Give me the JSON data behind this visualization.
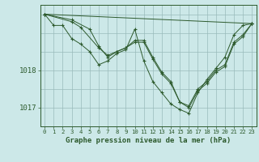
{
  "title": "Graphe pression niveau de la mer (hPa)",
  "bg_color": "#cce8e8",
  "grid_color": "#99bbbb",
  "line_color": "#2d5a2d",
  "xlim": [
    -0.5,
    23.5
  ],
  "ylim": [
    1016.5,
    1019.75
  ],
  "yticks": [
    1017,
    1018
  ],
  "xticks": [
    0,
    1,
    2,
    3,
    4,
    5,
    6,
    7,
    8,
    9,
    10,
    11,
    12,
    13,
    14,
    15,
    16,
    17,
    18,
    19,
    20,
    21,
    22,
    23
  ],
  "lines": [
    {
      "x": [
        0,
        1,
        2,
        3,
        4,
        5,
        6,
        7,
        8,
        9,
        10,
        11,
        12,
        13,
        14,
        15,
        16,
        17,
        18,
        19,
        20,
        21,
        22,
        23
      ],
      "y": [
        1019.5,
        1019.2,
        1019.2,
        1018.85,
        1018.7,
        1018.5,
        1018.15,
        1018.25,
        1018.45,
        1018.55,
        1019.1,
        1018.25,
        1017.7,
        1017.4,
        1017.1,
        1016.95,
        1016.85,
        1017.4,
        1017.75,
        1018.05,
        1018.35,
        1018.95,
        1019.2,
        1019.25
      ]
    },
    {
      "x": [
        0,
        3,
        4,
        6,
        7,
        8,
        9,
        10,
        11,
        12,
        13,
        14,
        15,
        16,
        17,
        18,
        19,
        20,
        21,
        22,
        23
      ],
      "y": [
        1019.5,
        1019.3,
        1019.15,
        1018.6,
        1018.4,
        1018.5,
        1018.6,
        1018.75,
        1018.75,
        1018.3,
        1017.9,
        1017.65,
        1017.15,
        1017.05,
        1017.5,
        1017.7,
        1018.0,
        1018.15,
        1018.75,
        1018.95,
        1019.25
      ]
    },
    {
      "x": [
        0,
        3,
        5,
        6,
        7,
        8,
        9,
        10,
        11,
        12,
        13,
        14,
        15,
        16,
        17,
        18,
        19,
        20,
        21,
        22,
        23
      ],
      "y": [
        1019.5,
        1019.35,
        1019.1,
        1018.65,
        1018.35,
        1018.5,
        1018.6,
        1018.8,
        1018.8,
        1018.35,
        1017.95,
        1017.7,
        1017.15,
        1017.0,
        1017.45,
        1017.65,
        1017.95,
        1018.1,
        1018.7,
        1018.9,
        1019.25
      ]
    },
    {
      "x": [
        0,
        23
      ],
      "y": [
        1019.5,
        1019.25
      ]
    }
  ]
}
